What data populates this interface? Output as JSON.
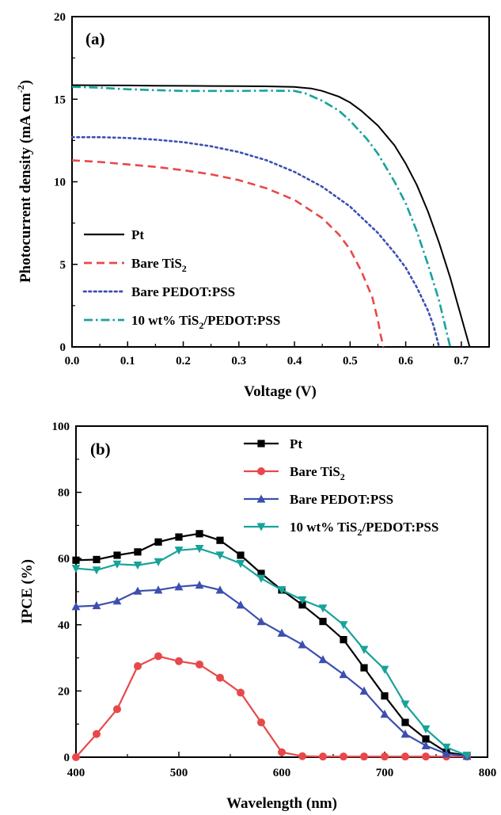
{
  "chart_data": [
    {
      "type": "line",
      "panel": "(a)",
      "xlabel": "Voltage (V)",
      "ylabel": "Photocurrent density (mA cm",
      "ylabel_sup": "-2",
      "ylabel_end": ")",
      "xlim": [
        0.0,
        0.75
      ],
      "ylim": [
        0,
        20
      ],
      "xticks": [
        0.0,
        0.1,
        0.2,
        0.3,
        0.4,
        0.5,
        0.6,
        0.7
      ],
      "xtick_labels": [
        "0.0",
        "0.1",
        "0.2",
        "0.3",
        "0.4",
        "0.5",
        "0.6",
        "0.7"
      ],
      "yticks": [
        0,
        5,
        10,
        15,
        20
      ],
      "ytick_labels": [
        "0",
        "5",
        "10",
        "15",
        "20"
      ],
      "legend_position": "bottom-left",
      "series": [
        {
          "name": "Pt",
          "legend_base": "Pt",
          "color": "#000000",
          "dash": "solid",
          "points": [
            [
              0.0,
              15.85
            ],
            [
              0.05,
              15.84
            ],
            [
              0.1,
              15.83
            ],
            [
              0.15,
              15.82
            ],
            [
              0.2,
              15.81
            ],
            [
              0.25,
              15.8
            ],
            [
              0.3,
              15.79
            ],
            [
              0.35,
              15.78
            ],
            [
              0.4,
              15.74
            ],
            [
              0.43,
              15.65
            ],
            [
              0.45,
              15.5
            ],
            [
              0.48,
              15.15
            ],
            [
              0.5,
              14.8
            ],
            [
              0.52,
              14.3
            ],
            [
              0.55,
              13.4
            ],
            [
              0.58,
              12.2
            ],
            [
              0.6,
              11.1
            ],
            [
              0.62,
              9.8
            ],
            [
              0.64,
              8.2
            ],
            [
              0.66,
              6.3
            ],
            [
              0.68,
              4.2
            ],
            [
              0.69,
              3.0
            ],
            [
              0.7,
              1.8
            ],
            [
              0.71,
              0.6
            ],
            [
              0.715,
              0.0
            ]
          ]
        },
        {
          "name": "Bare TiS2",
          "legend_base": "Bare TiS",
          "legend_sub": "2",
          "legend_rest": "",
          "color": "#e8484a",
          "dash": "dash",
          "points": [
            [
              0.0,
              11.3
            ],
            [
              0.05,
              11.2
            ],
            [
              0.1,
              11.05
            ],
            [
              0.15,
              10.9
            ],
            [
              0.2,
              10.7
            ],
            [
              0.25,
              10.45
            ],
            [
              0.3,
              10.1
            ],
            [
              0.35,
              9.6
            ],
            [
              0.4,
              8.9
            ],
            [
              0.45,
              7.8
            ],
            [
              0.48,
              6.8
            ],
            [
              0.5,
              5.9
            ],
            [
              0.52,
              4.6
            ],
            [
              0.54,
              3.0
            ],
            [
              0.55,
              1.6
            ],
            [
              0.555,
              0.7
            ],
            [
              0.56,
              0.0
            ]
          ]
        },
        {
          "name": "Bare PEDOT:PSS",
          "legend_base": "Bare PEDOT:PSS",
          "color": "#3c4fb0",
          "dash": "dot",
          "points": [
            [
              0.0,
              12.7
            ],
            [
              0.05,
              12.7
            ],
            [
              0.1,
              12.65
            ],
            [
              0.15,
              12.55
            ],
            [
              0.2,
              12.4
            ],
            [
              0.25,
              12.15
            ],
            [
              0.3,
              11.8
            ],
            [
              0.35,
              11.3
            ],
            [
              0.4,
              10.6
            ],
            [
              0.45,
              9.7
            ],
            [
              0.5,
              8.5
            ],
            [
              0.55,
              6.9
            ],
            [
              0.58,
              5.7
            ],
            [
              0.6,
              4.8
            ],
            [
              0.62,
              3.6
            ],
            [
              0.64,
              2.2
            ],
            [
              0.65,
              1.3
            ],
            [
              0.66,
              0.0
            ]
          ]
        },
        {
          "name": "10 wt% TiS2/PEDOT:PSS",
          "legend_base": "10 wt% TiS",
          "legend_sub": "2",
          "legend_rest": "/PEDOT:PSS",
          "color": "#17a39a",
          "dash": "dashdot",
          "points": [
            [
              0.0,
              15.75
            ],
            [
              0.05,
              15.7
            ],
            [
              0.1,
              15.6
            ],
            [
              0.15,
              15.55
            ],
            [
              0.2,
              15.5
            ],
            [
              0.25,
              15.5
            ],
            [
              0.3,
              15.5
            ],
            [
              0.35,
              15.52
            ],
            [
              0.4,
              15.5
            ],
            [
              0.42,
              15.35
            ],
            [
              0.45,
              14.9
            ],
            [
              0.48,
              14.3
            ],
            [
              0.5,
              13.7
            ],
            [
              0.53,
              12.6
            ],
            [
              0.55,
              11.7
            ],
            [
              0.58,
              10.0
            ],
            [
              0.6,
              8.7
            ],
            [
              0.62,
              7.0
            ],
            [
              0.64,
              5.0
            ],
            [
              0.66,
              2.8
            ],
            [
              0.67,
              1.4
            ],
            [
              0.68,
              0.0
            ]
          ]
        }
      ]
    },
    {
      "type": "line",
      "panel": "(b)",
      "xlabel": "Wavelength (nm)",
      "ylabel": "IPCE (%)",
      "xlim": [
        400,
        800
      ],
      "ylim": [
        0,
        100
      ],
      "xticks": [
        400,
        500,
        600,
        700,
        800
      ],
      "xtick_labels": [
        "400",
        "500",
        "600",
        "700",
        "800"
      ],
      "yticks": [
        0,
        20,
        40,
        60,
        80,
        100
      ],
      "ytick_labels": [
        "0",
        "20",
        "40",
        "60",
        "80",
        "100"
      ],
      "legend_position": "top-right",
      "x": [
        400,
        420,
        440,
        460,
        480,
        500,
        520,
        540,
        560,
        580,
        600,
        620,
        640,
        660,
        680,
        700,
        720,
        740,
        760,
        780
      ],
      "series": [
        {
          "name": "Pt",
          "legend_base": "Pt",
          "color": "#000000",
          "marker": "square",
          "values": [
            59.5,
            59.7,
            61,
            62,
            65,
            66.5,
            67.5,
            65.5,
            61,
            55.5,
            50.5,
            46,
            41,
            35.5,
            27,
            18.5,
            10.5,
            5.5,
            1.5,
            0.5
          ]
        },
        {
          "name": "Bare TiS2",
          "legend_base": "Bare TiS",
          "legend_sub": "2",
          "legend_rest": "",
          "color": "#e8484a",
          "marker": "circle",
          "values": [
            0,
            7,
            14.5,
            27.5,
            30.5,
            29,
            28,
            24,
            19.5,
            10.5,
            1.5,
            0.3,
            0.2,
            0.2,
            0.2,
            0.2,
            0.2,
            0.2,
            0.2,
            0.2
          ]
        },
        {
          "name": "Bare PEDOT:PSS",
          "legend_base": "Bare PEDOT:PSS",
          "color": "#3c4fb0",
          "marker": "triangle-up",
          "values": [
            45.5,
            45.8,
            47.2,
            50.2,
            50.5,
            51.5,
            52,
            50.5,
            46,
            41,
            37.5,
            34,
            29.5,
            25,
            20,
            13,
            7,
            3.5,
            1,
            0.3
          ]
        },
        {
          "name": "10 wt% TiS2/PEDOT:PSS",
          "legend_base": "10 wt% TiS",
          "legend_sub": "2",
          "legend_rest": "/PEDOT:PSS",
          "color": "#17a39a",
          "marker": "triangle-down",
          "values": [
            57,
            56.5,
            58.3,
            58,
            59,
            62.5,
            63,
            61,
            58.5,
            54,
            50.5,
            47.5,
            45,
            40,
            32.5,
            26.5,
            16,
            8.5,
            3,
            0.5
          ]
        }
      ]
    }
  ]
}
